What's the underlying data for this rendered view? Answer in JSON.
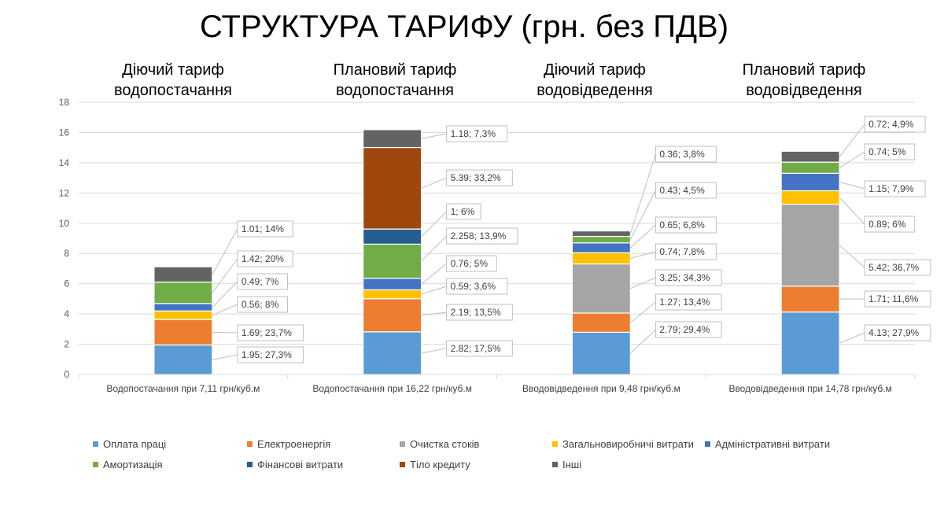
{
  "title": "СТРУКТУРА ТАРИФУ (грн. без ПДВ)",
  "subtitles": [
    "Діючий тариф\nводопостачання",
    "Плановий тариф\nводопостачання",
    "Діючий тариф\nводовідведення",
    "Плановий тариф\nводовідведення"
  ],
  "chart_data": {
    "type": "bar",
    "stacked": true,
    "ylim": [
      0,
      18
    ],
    "yticks": [
      0,
      2,
      4,
      6,
      8,
      10,
      12,
      14,
      16,
      18
    ],
    "grid": true,
    "legend_position": "bottom",
    "categories": [
      "Водопостачання при 7,11 грн/куб.м",
      "Водопостачання при 16,22 грн/куб.м",
      "Вводовідведення при 9,48 грн/куб.м",
      "Вводовідведення при 14,78 грн/куб.м"
    ],
    "series": [
      {
        "name": "Оплата праці",
        "color": "#5B9BD5",
        "values": [
          1.95,
          2.82,
          2.79,
          4.13
        ],
        "labels": [
          "1.95; 27,3%",
          "2.82; 17,5%",
          "2.79; 29,4%",
          "4.13; 27,9%"
        ]
      },
      {
        "name": "Електроенергія",
        "color": "#ED7D31",
        "values": [
          1.69,
          2.19,
          1.27,
          1.71
        ],
        "labels": [
          "1.69; 23,7%",
          "2.19; 13,5%",
          "1.27; 13,4%",
          "1.71; 11,6%"
        ]
      },
      {
        "name": "Очистка стоків",
        "color": "#A5A5A5",
        "values": [
          0,
          0,
          3.25,
          5.42
        ],
        "labels": [
          "",
          "",
          "3.25; 34,3%",
          "5.42; 36,7%"
        ]
      },
      {
        "name": "Загальновиробничі витрати",
        "color": "#FFC000",
        "values": [
          0.56,
          0.59,
          0.74,
          0.89
        ],
        "labels": [
          "0.56; 8%",
          "0.59; 3,6%",
          "0.74; 7,8%",
          "0.89; 6%"
        ]
      },
      {
        "name": "Адміністративні витрати",
        "color": "#4472C4",
        "values": [
          0.49,
          0.76,
          0.65,
          1.15
        ],
        "labels": [
          "0.49; 7%",
          "0.76; 5%",
          "0.65; 6,8%",
          "1.15; 7,9%"
        ]
      },
      {
        "name": "Амортизація",
        "color": "#70AD47",
        "values": [
          1.42,
          2.258,
          0.43,
          0.74
        ],
        "labels": [
          "1.42; 20%",
          "2.258; 13,9%",
          "0.43; 4,5%",
          "0.74; 5%"
        ]
      },
      {
        "name": "Фінансові витрати",
        "color": "#255E91",
        "values": [
          0,
          1,
          0,
          0
        ],
        "labels": [
          "",
          "1; 6%",
          "",
          ""
        ]
      },
      {
        "name": "Тіло кредиту",
        "color": "#9E480E",
        "values": [
          0,
          5.39,
          0,
          0
        ],
        "labels": [
          "",
          "5.39; 33,2%",
          "",
          ""
        ]
      },
      {
        "name": "Інші",
        "color": "#636363",
        "values": [
          1.01,
          1.18,
          0.36,
          0.72
        ],
        "labels": [
          "1.01; 14%",
          "1.18; 7,3%",
          "0.36; 3,8%",
          "0.72; 4,9%"
        ]
      }
    ]
  }
}
